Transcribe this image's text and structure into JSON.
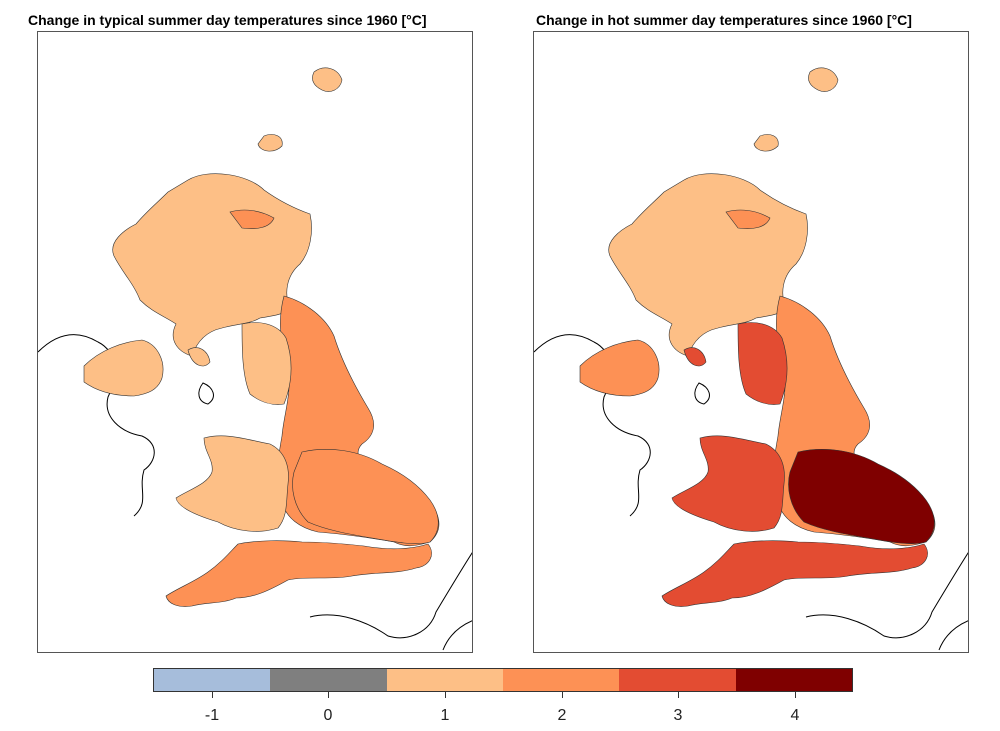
{
  "panels": [
    {
      "title": "Change in typical summer day temperatures since 1960 [°C]",
      "fills": {
        "north": "#fdbf86",
        "northeast_patch": "#fd9155",
        "east": "#fd9155",
        "wales": "#fdbf86",
        "southwest": "#fd9155",
        "ni": "#fdbf86",
        "southeast": "#fd9155"
      }
    },
    {
      "title": "Change in hot summer day temperatures since 1960 [°C]",
      "fills": {
        "north": "#fdbf86",
        "northeast_patch": "#fd9155",
        "east": "#fd9155",
        "wales": "#e34c32",
        "southwest": "#e34c32",
        "ni": "#fd9155",
        "southeast": "#7f0000"
      }
    }
  ],
  "legend": {
    "colors": [
      "#a6bddb",
      "#7f7f7f",
      "#fdbf86",
      "#fd9155",
      "#e34c32",
      "#7f0000"
    ],
    "ticks": [
      "-1",
      "0",
      "1",
      "2",
      "3",
      "4"
    ]
  }
}
